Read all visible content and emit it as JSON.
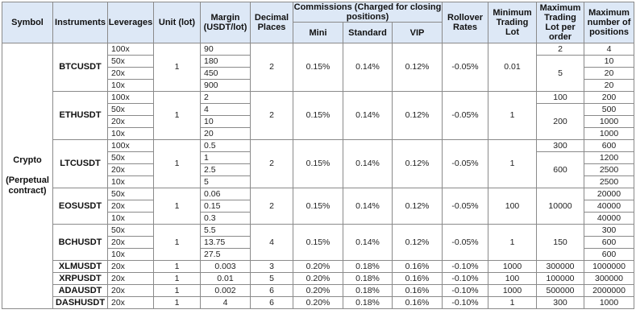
{
  "headers": {
    "symbol": "Symbol",
    "instruments": "Instruments",
    "leverages": "Leverages",
    "unit": "Unit (lot)",
    "margin": "Margin (USDT/lot)",
    "decimal": "Decimal Places",
    "commissions": "Commissions (Charged for closing positions)",
    "mini": "Mini",
    "standard": "Standard",
    "vip": "VIP",
    "rollover": "Rollover Rates",
    "min_lot": "Minimum Trading Lot",
    "max_lot": "Maximum Trading Lot per order",
    "max_pos": "Maximum number of positions"
  },
  "symbol_group": {
    "name": "Crypto",
    "sub": "(Perpetual contract)"
  },
  "groups": [
    {
      "instrument": "BTCUSDT",
      "unit": "1",
      "decimal": "2",
      "mini": "0.15%",
      "standard": "0.14%",
      "vip": "0.12%",
      "rollover": "-0.05%",
      "min_lot": "0.01",
      "rows": [
        {
          "leverage": "100x",
          "margin": "90",
          "max_lot": "2",
          "max_pos": "4"
        },
        {
          "leverage": "50x",
          "margin": "180",
          "max_lot": "5",
          "max_pos": "10"
        },
        {
          "leverage": "20x",
          "margin": "450",
          "max_pos": "20"
        },
        {
          "leverage": "10x",
          "margin": "900",
          "max_pos": "20"
        }
      ]
    },
    {
      "instrument": "ETHUSDT",
      "unit": "1",
      "decimal": "2",
      "mini": "0.15%",
      "standard": "0.14%",
      "vip": "0.12%",
      "rollover": "-0.05%",
      "min_lot": "1",
      "rows": [
        {
          "leverage": "100x",
          "margin": "2",
          "max_lot": "100",
          "max_pos": "200"
        },
        {
          "leverage": "50x",
          "margin": "4",
          "max_lot": "200",
          "max_pos": "500"
        },
        {
          "leverage": "20x",
          "margin": "10",
          "max_pos": "1000"
        },
        {
          "leverage": "10x",
          "margin": "20",
          "max_pos": "1000"
        }
      ]
    },
    {
      "instrument": "LTCUSDT",
      "unit": "1",
      "decimal": "2",
      "mini": "0.15%",
      "standard": "0.14%",
      "vip": "0.12%",
      "rollover": "-0.05%",
      "min_lot": "1",
      "rows": [
        {
          "leverage": "100x",
          "margin": "0.5",
          "max_lot": "300",
          "max_pos": "600"
        },
        {
          "leverage": "50x",
          "margin": "1",
          "max_lot": "600",
          "max_pos": "1200"
        },
        {
          "leverage": "20x",
          "margin": "2.5",
          "max_pos": "2500"
        },
        {
          "leverage": "10x",
          "margin": "5",
          "max_pos": "2500"
        }
      ]
    },
    {
      "instrument": "EOSUSDT",
      "unit": "1",
      "decimal": "2",
      "mini": "0.15%",
      "standard": "0.14%",
      "vip": "0.12%",
      "rollover": "-0.05%",
      "min_lot": "100",
      "rows": [
        {
          "leverage": "50x",
          "margin": "0.06",
          "max_lot": "10000",
          "max_pos": "20000"
        },
        {
          "leverage": "20x",
          "margin": "0.15",
          "max_pos": "40000"
        },
        {
          "leverage": "10x",
          "margin": "0.3",
          "max_pos": "40000"
        }
      ]
    },
    {
      "instrument": "BCHUSDT",
      "unit": "1",
      "decimal": "4",
      "mini": "0.15%",
      "standard": "0.14%",
      "vip": "0.12%",
      "rollover": "-0.05%",
      "min_lot": "1",
      "rows": [
        {
          "leverage": "50x",
          "margin": "5.5",
          "max_lot": "150",
          "max_pos": "300"
        },
        {
          "leverage": "20x",
          "margin": "13.75",
          "max_pos": "600"
        },
        {
          "leverage": "10x",
          "margin": "27.5",
          "max_pos": "600"
        }
      ]
    }
  ],
  "singles": [
    {
      "instrument": "XLMUSDT",
      "leverage": "20x",
      "unit": "1",
      "margin": "0.003",
      "decimal": "3",
      "mini": "0.20%",
      "standard": "0.18%",
      "vip": "0.16%",
      "rollover": "-0.10%",
      "min_lot": "1000",
      "max_lot": "300000",
      "max_pos": "1000000"
    },
    {
      "instrument": "XRPUSDT",
      "leverage": "20x",
      "unit": "1",
      "margin": "0.01",
      "decimal": "5",
      "mini": "0.20%",
      "standard": "0.18%",
      "vip": "0.16%",
      "rollover": "-0.10%",
      "min_lot": "100",
      "max_lot": "100000",
      "max_pos": "300000"
    },
    {
      "instrument": "ADAUSDT",
      "leverage": "20x",
      "unit": "1",
      "margin": "0.002",
      "decimal": "6",
      "mini": "0.20%",
      "standard": "0.18%",
      "vip": "0.16%",
      "rollover": "-0.10%",
      "min_lot": "1000",
      "max_lot": "500000",
      "max_pos": "2000000"
    },
    {
      "instrument": "DASHUSDT",
      "leverage": "20x",
      "unit": "1",
      "margin": "4",
      "decimal": "6",
      "mini": "0.20%",
      "standard": "0.18%",
      "vip": "0.16%",
      "rollover": "-0.10%",
      "min_lot": "1",
      "max_lot": "300",
      "max_pos": "1000"
    }
  ]
}
